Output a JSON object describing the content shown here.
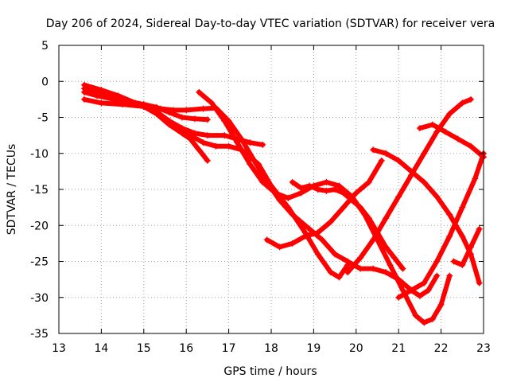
{
  "chart_data": {
    "type": "scatter",
    "title": "Day 206 of 2024, Sidereal Day-to-day VTEC variation (SDTVAR) for receiver vera",
    "xlabel": "GPS time / hours",
    "ylabel": "SDTVAR / TECUs",
    "xlim": [
      13,
      23
    ],
    "ylim": [
      -35,
      5
    ],
    "xticks": [
      "13",
      "14",
      "15",
      "16",
      "17",
      "18",
      "19",
      "20",
      "21",
      "22",
      "23"
    ],
    "yticks": [
      "5",
      "0",
      "-5",
      "-10",
      "-15",
      "-20",
      "-25",
      "-30",
      "-35"
    ],
    "grid": true,
    "marker": "plus",
    "color": "#ff0000",
    "series": [
      {
        "name": "trace-1",
        "points": [
          [
            13.6,
            -1.5
          ],
          [
            13.9,
            -2.0
          ],
          [
            14.3,
            -2.5
          ],
          [
            14.7,
            -3.0
          ],
          [
            15.0,
            -3.2
          ],
          [
            15.3,
            -3.6
          ],
          [
            15.6,
            -4.3
          ],
          [
            15.9,
            -5.0
          ],
          [
            16.2,
            -5.2
          ],
          [
            16.5,
            -5.3
          ]
        ]
      },
      {
        "name": "trace-2",
        "points": [
          [
            13.6,
            -1.0
          ],
          [
            14.0,
            -1.8
          ],
          [
            14.5,
            -2.6
          ],
          [
            15.0,
            -3.2
          ],
          [
            15.4,
            -3.8
          ],
          [
            15.7,
            -4.0
          ],
          [
            16.0,
            -4.0
          ],
          [
            16.4,
            -3.8
          ],
          [
            16.7,
            -3.7
          ],
          [
            17.0,
            -5.5
          ],
          [
            17.3,
            -8.0
          ],
          [
            17.6,
            -11.0
          ],
          [
            17.9,
            -14.0
          ],
          [
            18.2,
            -16.5
          ],
          [
            18.5,
            -18.5
          ],
          [
            18.9,
            -20.5
          ],
          [
            19.2,
            -22.0
          ],
          [
            19.5,
            -24.0
          ],
          [
            19.8,
            -25.0
          ],
          [
            20.1,
            -26.0
          ],
          [
            20.4,
            -26.0
          ],
          [
            20.7,
            -26.5
          ],
          [
            21.0,
            -27.5
          ],
          [
            21.3,
            -29.0
          ],
          [
            21.5,
            -29.8
          ],
          [
            21.7,
            -29.0
          ],
          [
            21.9,
            -27.0
          ]
        ]
      },
      {
        "name": "trace-3",
        "points": [
          [
            13.6,
            -0.5
          ],
          [
            14.0,
            -1.2
          ],
          [
            14.4,
            -2.0
          ],
          [
            14.8,
            -3.0
          ],
          [
            15.2,
            -4.0
          ],
          [
            15.5,
            -5.3
          ],
          [
            15.8,
            -6.5
          ],
          [
            16.1,
            -7.5
          ],
          [
            16.4,
            -8.5
          ],
          [
            16.7,
            -9.0
          ],
          [
            17.0,
            -9.0
          ],
          [
            17.3,
            -9.5
          ],
          [
            17.7,
            -11.5
          ],
          [
            18.0,
            -14.5
          ],
          [
            18.4,
            -17.5
          ],
          [
            18.8,
            -21.0
          ],
          [
            19.1,
            -24.0
          ],
          [
            19.4,
            -26.5
          ],
          [
            19.6,
            -27.2
          ],
          [
            19.8,
            -25.5
          ]
        ]
      },
      {
        "name": "trace-4",
        "points": [
          [
            13.6,
            -2.5
          ],
          [
            14.0,
            -3.0
          ],
          [
            14.5,
            -3.2
          ],
          [
            15.0,
            -3.5
          ],
          [
            15.3,
            -4.2
          ],
          [
            15.6,
            -5.5
          ],
          [
            15.9,
            -6.5
          ],
          [
            16.2,
            -7.2
          ],
          [
            16.5,
            -7.5
          ],
          [
            16.9,
            -7.5
          ],
          [
            17.2,
            -8.0
          ],
          [
            17.5,
            -8.5
          ],
          [
            17.8,
            -8.8
          ]
        ]
      },
      {
        "name": "trace-5",
        "points": [
          [
            14.6,
            -3.0
          ],
          [
            15.0,
            -3.5
          ],
          [
            15.3,
            -4.5
          ],
          [
            15.6,
            -6.0
          ],
          [
            15.9,
            -7.2
          ],
          [
            16.1,
            -8.0
          ],
          [
            16.3,
            -9.5
          ],
          [
            16.5,
            -11.0
          ]
        ]
      },
      {
        "name": "trace-6",
        "points": [
          [
            16.3,
            -1.5
          ],
          [
            16.6,
            -3.0
          ],
          [
            16.9,
            -5.5
          ],
          [
            17.2,
            -8.5
          ],
          [
            17.5,
            -11.5
          ],
          [
            17.8,
            -14.0
          ],
          [
            18.1,
            -15.5
          ],
          [
            18.4,
            -16.2
          ],
          [
            18.7,
            -15.5
          ],
          [
            19.0,
            -14.5
          ],
          [
            19.3,
            -14.0
          ],
          [
            19.6,
            -14.5
          ],
          [
            19.9,
            -16.0
          ],
          [
            20.2,
            -18.5
          ],
          [
            20.5,
            -22.0
          ],
          [
            20.8,
            -25.5
          ],
          [
            21.1,
            -29.0
          ],
          [
            21.4,
            -32.5
          ],
          [
            21.6,
            -33.5
          ],
          [
            21.8,
            -33.0
          ],
          [
            22.0,
            -31.0
          ],
          [
            22.2,
            -27.0
          ]
        ]
      },
      {
        "name": "trace-7",
        "points": [
          [
            18.5,
            -14.0
          ],
          [
            18.7,
            -14.8
          ],
          [
            18.9,
            -14.5
          ],
          [
            19.1,
            -15.0
          ],
          [
            19.3,
            -15.2
          ],
          [
            19.5,
            -15.0
          ],
          [
            19.7,
            -15.5
          ],
          [
            19.9,
            -16.5
          ],
          [
            20.1,
            -17.5
          ],
          [
            20.3,
            -19.0
          ],
          [
            20.5,
            -21.0
          ],
          [
            20.7,
            -23.0
          ],
          [
            20.9,
            -24.5
          ],
          [
            21.1,
            -26.0
          ]
        ]
      },
      {
        "name": "trace-8",
        "points": [
          [
            17.9,
            -22.0
          ],
          [
            18.2,
            -23.0
          ],
          [
            18.5,
            -22.5
          ],
          [
            18.8,
            -21.5
          ],
          [
            19.1,
            -21.0
          ],
          [
            19.4,
            -19.5
          ],
          [
            19.7,
            -17.5
          ],
          [
            20.0,
            -15.5
          ],
          [
            20.3,
            -14.0
          ],
          [
            20.6,
            -11.0
          ]
        ]
      },
      {
        "name": "trace-9",
        "points": [
          [
            20.4,
            -9.5
          ],
          [
            20.7,
            -10.0
          ],
          [
            21.0,
            -11.0
          ],
          [
            21.3,
            -12.5
          ],
          [
            21.6,
            -14.0
          ],
          [
            21.9,
            -16.0
          ],
          [
            22.2,
            -18.5
          ],
          [
            22.5,
            -21.5
          ],
          [
            22.7,
            -24.0
          ],
          [
            22.9,
            -28.0
          ]
        ]
      },
      {
        "name": "trace-10",
        "points": [
          [
            19.8,
            -26.5
          ],
          [
            20.1,
            -24.5
          ],
          [
            20.4,
            -22.0
          ],
          [
            20.7,
            -19.0
          ],
          [
            21.0,
            -16.0
          ],
          [
            21.3,
            -13.0
          ],
          [
            21.6,
            -10.0
          ],
          [
            21.9,
            -7.0
          ],
          [
            22.2,
            -4.5
          ],
          [
            22.5,
            -3.0
          ],
          [
            22.7,
            -2.5
          ]
        ]
      },
      {
        "name": "trace-11",
        "points": [
          [
            21.5,
            -6.5
          ],
          [
            21.8,
            -6.0
          ],
          [
            22.1,
            -7.0
          ],
          [
            22.4,
            -8.0
          ],
          [
            22.7,
            -9.0
          ],
          [
            23.0,
            -10.5
          ]
        ]
      },
      {
        "name": "trace-12",
        "points": [
          [
            22.3,
            -25.0
          ],
          [
            22.5,
            -25.5
          ],
          [
            22.7,
            -23.0
          ],
          [
            22.9,
            -20.5
          ]
        ]
      },
      {
        "name": "trace-13",
        "points": [
          [
            21.0,
            -30.0
          ],
          [
            21.3,
            -29.0
          ],
          [
            21.6,
            -28.0
          ],
          [
            21.9,
            -25.0
          ],
          [
            22.2,
            -21.5
          ],
          [
            22.5,
            -17.5
          ],
          [
            22.8,
            -13.5
          ],
          [
            23.0,
            -10.0
          ]
        ]
      }
    ]
  }
}
